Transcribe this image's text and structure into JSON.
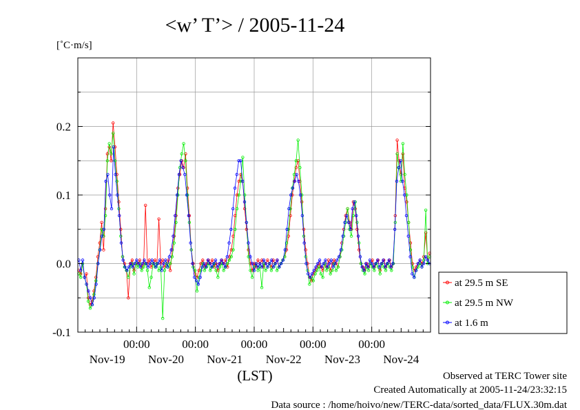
{
  "title": "<w’ T’> / 2005-11-24",
  "y_unit": "[˚C·m/s]",
  "x_axis_label": "(LST)",
  "footer": {
    "line1": "Observed at TERC Tower site",
    "line2": "Created Automatically at 2005-11-24/23:32:15",
    "line3": "Data source : /home/hoivo/new/TERC-data/sorted_data/FLUX.30m.dat"
  },
  "colors": {
    "se": "#ff0000",
    "nw": "#00ee00",
    "m16": "#0000ff",
    "grid": "#999999"
  },
  "chart_data": {
    "type": "line",
    "ylim": [
      -0.1,
      0.3
    ],
    "xlim_days": [
      0,
      6
    ],
    "y_ticks": [
      -0.1,
      0.0,
      0.1,
      0.2
    ],
    "y_tick_labels": [
      "-0.1",
      "0.0",
      "0.1",
      "0.2"
    ],
    "x_major_ticks": [
      "00:00",
      "00:00",
      "00:00",
      "00:00",
      "00:00"
    ],
    "x_day_labels": [
      "Nov-19",
      "Nov-20",
      "Nov-21",
      "Nov-22",
      "Nov-23",
      "Nov-24"
    ],
    "grid": true,
    "legend_position": "right",
    "series": [
      {
        "name": "at 29.5 m SE",
        "color": "#ff0000",
        "values": [
          -0.01,
          -0.015,
          0.0,
          -0.02,
          -0.015,
          -0.05,
          -0.06,
          -0.055,
          -0.04,
          -0.02,
          0.01,
          0.03,
          0.06,
          0.02,
          0.08,
          0.16,
          0.17,
          0.15,
          0.205,
          0.17,
          0.13,
          0.09,
          0.05,
          0.01,
          0.0,
          -0.01,
          -0.05,
          0.0,
          0.005,
          -0.01,
          0.0,
          0.0,
          0.005,
          -0.005,
          0.0,
          0.085,
          0.0,
          0.005,
          -0.005,
          0.0,
          0.005,
          0.0,
          0.065,
          0.0,
          0.005,
          -0.005,
          0.0,
          0.005,
          -0.01,
          0.02,
          0.04,
          0.07,
          0.11,
          0.13,
          0.15,
          0.14,
          0.16,
          0.11,
          0.07,
          0.02,
          0.0,
          -0.015,
          -0.02,
          -0.01,
          0.0,
          0.005,
          -0.005,
          0.0,
          0.005,
          0.0,
          0.005,
          -0.005,
          0.0,
          -0.01,
          0.0,
          0.005,
          0.0,
          0.005,
          -0.005,
          0.01,
          0.02,
          0.04,
          0.07,
          0.1,
          0.12,
          0.13,
          0.12,
          0.08,
          0.05,
          0.02,
          0.0,
          -0.01,
          0.0,
          -0.005,
          0.005,
          0.0,
          0.005,
          -0.005,
          0.0,
          0.005,
          0.0,
          -0.005,
          0.005,
          0.0,
          0.005,
          -0.005,
          0.0,
          0.005,
          0.01,
          0.02,
          0.04,
          0.07,
          0.1,
          0.12,
          0.14,
          0.15,
          0.12,
          0.09,
          0.05,
          0.02,
          0.0,
          -0.02,
          -0.025,
          -0.015,
          -0.01,
          -0.005,
          0.0,
          -0.005,
          -0.01,
          0.0,
          -0.005,
          0.005,
          -0.01,
          0.0,
          0.005,
          0.0,
          -0.005,
          0.01,
          0.03,
          0.05,
          0.07,
          0.08,
          0.06,
          0.05,
          0.09,
          0.08,
          0.05,
          0.02,
          0.0,
          -0.005,
          -0.01,
          0.0,
          -0.005,
          0.0,
          0.005,
          -0.005,
          0.0,
          0.005,
          -0.01,
          0.0,
          0.005,
          -0.005,
          0.0,
          0.005,
          -0.005,
          0.0,
          0.07,
          0.18,
          0.15,
          0.13,
          0.16,
          0.11,
          0.09,
          0.06,
          0.03,
          0.0,
          -0.01,
          -0.005,
          0.0,
          0.005,
          0.0,
          0.01,
          0.045,
          0.005,
          0.015
        ]
      },
      {
        "name": "at 29.5 m NW",
        "color": "#00ee00",
        "values": [
          -0.015,
          -0.02,
          0.0,
          -0.02,
          -0.03,
          -0.055,
          -0.065,
          -0.06,
          -0.045,
          -0.025,
          0.0,
          0.02,
          0.05,
          0.04,
          0.07,
          0.15,
          0.175,
          0.16,
          0.19,
          0.15,
          0.12,
          0.08,
          0.04,
          0.01,
          -0.005,
          -0.01,
          -0.02,
          -0.005,
          0.0,
          -0.015,
          0.0,
          -0.005,
          0.0,
          -0.01,
          -0.005,
          0.0,
          -0.01,
          -0.035,
          -0.02,
          0.0,
          -0.005,
          0.0,
          -0.01,
          -0.005,
          -0.08,
          -0.01,
          0.0,
          -0.005,
          0.0,
          0.01,
          0.03,
          0.06,
          0.1,
          0.14,
          0.16,
          0.175,
          0.15,
          0.1,
          0.06,
          0.02,
          -0.005,
          -0.01,
          -0.04,
          -0.02,
          -0.01,
          0.0,
          -0.01,
          -0.005,
          0.0,
          -0.01,
          -0.005,
          0.0,
          -0.01,
          -0.02,
          -0.005,
          0.0,
          -0.01,
          -0.005,
          0.0,
          0.005,
          0.01,
          0.02,
          0.05,
          0.08,
          0.1,
          0.12,
          0.155,
          0.1,
          0.06,
          0.01,
          -0.01,
          -0.02,
          -0.005,
          0.0,
          -0.01,
          -0.005,
          -0.035,
          0.0,
          -0.01,
          -0.005,
          0.0,
          -0.01,
          -0.005,
          0.0,
          -0.01,
          -0.005,
          0.0,
          0.005,
          0.01,
          0.03,
          0.05,
          0.08,
          0.11,
          0.13,
          0.15,
          0.18,
          0.14,
          0.1,
          0.04,
          0.01,
          -0.01,
          -0.03,
          -0.02,
          -0.025,
          -0.015,
          -0.01,
          -0.005,
          -0.015,
          -0.02,
          0.0,
          -0.01,
          -0.005,
          -0.015,
          -0.01,
          0.0,
          -0.01,
          -0.005,
          0.01,
          0.02,
          0.04,
          0.06,
          0.08,
          0.05,
          0.04,
          0.07,
          0.09,
          0.06,
          0.03,
          0.0,
          -0.01,
          -0.015,
          -0.005,
          -0.01,
          0.0,
          -0.005,
          -0.01,
          0.0,
          -0.005,
          -0.015,
          0.0,
          -0.005,
          -0.01,
          0.0,
          -0.005,
          -0.01,
          0.0,
          0.06,
          0.16,
          0.14,
          0.12,
          0.175,
          0.13,
          0.1,
          0.06,
          0.02,
          -0.005,
          -0.02,
          -0.01,
          -0.005,
          0.0,
          -0.005,
          0.005,
          0.078,
          0.0,
          0.01
        ]
      },
      {
        "name": "at 1.6 m",
        "color": "#0000ff",
        "values": [
          0.005,
          -0.01,
          0.005,
          -0.02,
          -0.03,
          -0.04,
          -0.05,
          -0.06,
          -0.05,
          -0.03,
          0.0,
          0.02,
          0.04,
          0.05,
          0.12,
          0.13,
          0.1,
          0.08,
          0.17,
          0.13,
          0.1,
          0.07,
          0.03,
          0.005,
          -0.005,
          -0.01,
          -0.005,
          0.0,
          -0.005,
          0.0,
          0.005,
          0.0,
          -0.005,
          0.0,
          0.005,
          0.0,
          -0.005,
          0.0,
          0.005,
          0.0,
          -0.005,
          0.0,
          0.005,
          -0.01,
          0.0,
          0.005,
          -0.005,
          0.01,
          0.02,
          0.04,
          0.07,
          0.1,
          0.13,
          0.15,
          0.14,
          0.13,
          0.1,
          0.07,
          0.03,
          0.0,
          -0.02,
          -0.025,
          -0.03,
          -0.02,
          -0.005,
          0.0,
          -0.005,
          0.005,
          0.0,
          -0.005,
          0.0,
          0.005,
          -0.005,
          0.0,
          0.005,
          0.0,
          -0.005,
          0.01,
          0.03,
          0.05,
          0.08,
          0.11,
          0.13,
          0.15,
          0.15,
          0.12,
          0.09,
          0.06,
          0.03,
          0.01,
          0.0,
          -0.01,
          0.0,
          -0.005,
          0.0,
          -0.005,
          0.005,
          0.0,
          -0.005,
          0.0,
          0.005,
          -0.005,
          0.0,
          0.005,
          -0.005,
          0.0,
          0.005,
          0.02,
          0.05,
          0.08,
          0.1,
          0.11,
          0.12,
          0.13,
          0.12,
          0.1,
          0.07,
          0.03,
          0.0,
          -0.015,
          -0.02,
          -0.015,
          -0.01,
          -0.005,
          0.0,
          0.005,
          -0.005,
          0.0,
          0.005,
          -0.005,
          0.0,
          0.005,
          -0.005,
          0.0,
          0.005,
          0.01,
          0.02,
          0.04,
          0.06,
          0.07,
          0.06,
          0.05,
          0.08,
          0.09,
          0.07,
          0.04,
          0.01,
          -0.005,
          -0.01,
          0.0,
          -0.005,
          0.005,
          0.0,
          -0.005,
          0.0,
          0.005,
          -0.005,
          0.0,
          0.005,
          -0.005,
          0.0,
          0.005,
          -0.005,
          0.0,
          0.05,
          0.12,
          0.14,
          0.15,
          0.12,
          0.1,
          0.07,
          0.04,
          0.01,
          -0.015,
          -0.02,
          -0.01,
          0.0,
          0.005,
          -0.005,
          0.0,
          0.01,
          0.005,
          0.0
        ]
      }
    ]
  }
}
